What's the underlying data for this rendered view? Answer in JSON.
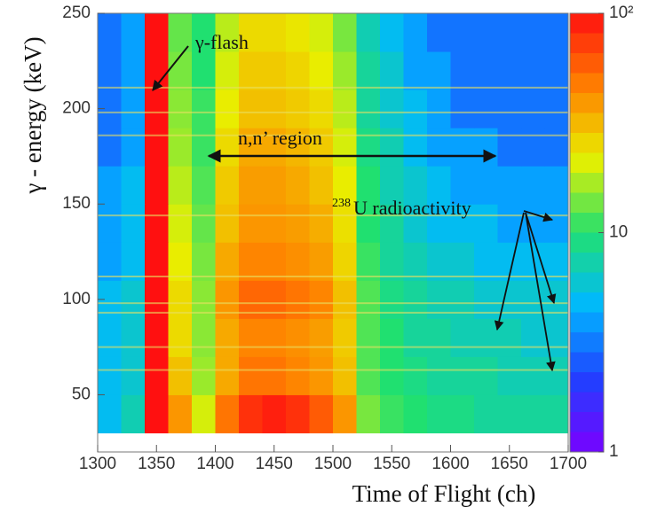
{
  "chart_data": {
    "type": "heatmap",
    "x_label": "Time of Flight (ch)",
    "y_label": "γ - energy (keV)",
    "xlim": [
      1300,
      1700
    ],
    "ylim": [
      20,
      250
    ],
    "xticks": [
      1300,
      1350,
      1400,
      1450,
      1500,
      1550,
      1600,
      1650,
      1700
    ],
    "yticks": [
      50,
      100,
      150,
      200,
      250
    ],
    "xbins": [
      1300,
      1320,
      1340,
      1360,
      1380,
      1400,
      1420,
      1440,
      1460,
      1480,
      1500,
      1520,
      1540,
      1560,
      1580,
      1600,
      1620,
      1640,
      1660,
      1680,
      1700
    ],
    "ybins": [
      30,
      50,
      70,
      90,
      110,
      130,
      150,
      170,
      190,
      210,
      230,
      250
    ],
    "z": [
      [
        5,
        7,
        100,
        40,
        20,
        50,
        80,
        90,
        80,
        60,
        40,
        14,
        11,
        10,
        9,
        9,
        8,
        8,
        8,
        8
      ],
      [
        5,
        6,
        100,
        30,
        16,
        35,
        50,
        50,
        45,
        40,
        30,
        12,
        10,
        9,
        8,
        8,
        8,
        7,
        7,
        7
      ],
      [
        5,
        6,
        100,
        25,
        15,
        35,
        45,
        45,
        42,
        38,
        28,
        12,
        10,
        8,
        8,
        7,
        7,
        7,
        6,
        6
      ],
      [
        5,
        6,
        100,
        25,
        15,
        40,
        55,
        55,
        50,
        45,
        30,
        12,
        9,
        8,
        7,
        7,
        6,
        6,
        6,
        6
      ],
      [
        4,
        5,
        100,
        22,
        14,
        35,
        45,
        45,
        42,
        38,
        26,
        11,
        8,
        7,
        6,
        6,
        5,
        5,
        5,
        5
      ],
      [
        4,
        5,
        100,
        20,
        13,
        30,
        40,
        40,
        38,
        34,
        24,
        10,
        8,
        6,
        5,
        5,
        5,
        4,
        4,
        4
      ],
      [
        4,
        5,
        100,
        18,
        12,
        28,
        38,
        38,
        35,
        30,
        22,
        10,
        7,
        6,
        5,
        4,
        4,
        4,
        4,
        4
      ],
      [
        3,
        4,
        100,
        16,
        11,
        25,
        35,
        35,
        32,
        28,
        20,
        9,
        7,
        5,
        4,
        4,
        4,
        3,
        3,
        3
      ],
      [
        3,
        4,
        100,
        15,
        11,
        22,
        30,
        30,
        28,
        25,
        18,
        8,
        6,
        5,
        4,
        3,
        3,
        3,
        3,
        3
      ],
      [
        3,
        4,
        100,
        14,
        10,
        20,
        28,
        28,
        26,
        22,
        16,
        8,
        6,
        4,
        4,
        3,
        3,
        3,
        3,
        3
      ],
      [
        3,
        4,
        100,
        13,
        10,
        18,
        25,
        25,
        23,
        20,
        14,
        7,
        5,
        4,
        3,
        3,
        3,
        3,
        3,
        3
      ]
    ],
    "gamma_lines": [
      63,
      75,
      93,
      98,
      112,
      144,
      186,
      198,
      211
    ],
    "line_color": "#e8e060",
    "zlim": [
      1,
      100
    ],
    "zscale": "log",
    "zticks": [
      1,
      10,
      {
        "value": 100,
        "label": "10²"
      }
    ],
    "colormap": [
      "#7a00ff",
      "#2040ff",
      "#00b8ff",
      "#20e070",
      "#e8f000",
      "#ff8000",
      "#ff1010"
    ],
    "annotations": {
      "flash": "γ-flash",
      "region": "n,n’ region",
      "isotope_mass": "238",
      "isotope": "U radioactivity"
    }
  }
}
